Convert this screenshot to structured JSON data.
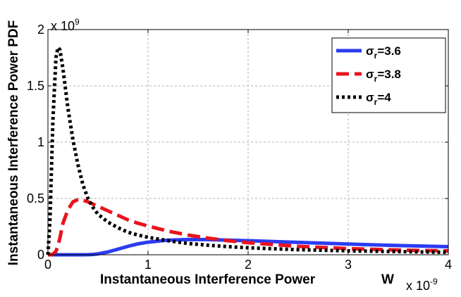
{
  "chart_data": {
    "type": "line",
    "title": "",
    "xlabel": "Instantaneous Interference Power",
    "xunit": "W",
    "ylabel": "Instantaneous Interference Power PDF",
    "x_exponent_label": "x 10",
    "x_exponent_power": "-9",
    "y_exponent_label": "x 10",
    "y_exponent_power": "9",
    "xlim": [
      0,
      4
    ],
    "ylim": [
      0,
      2
    ],
    "xticks": [
      0,
      1,
      2,
      3,
      4
    ],
    "xtick_labels": [
      "0",
      "1",
      "2",
      "3",
      "4"
    ],
    "yticks": [
      0,
      0.5,
      1,
      1.5,
      2
    ],
    "ytick_labels": [
      "0",
      "0.5",
      "1",
      "1.5",
      "2"
    ],
    "grid": true,
    "legend_position": "top-right",
    "x": [
      0.0,
      0.02,
      0.05,
      0.08,
      0.1,
      0.12,
      0.15,
      0.2,
      0.25,
      0.3,
      0.35,
      0.4,
      0.45,
      0.5,
      0.6,
      0.7,
      0.8,
      0.9,
      1.0,
      1.2,
      1.4,
      1.6,
      1.8,
      2.0,
      2.5,
      3.0,
      3.5,
      4.0
    ],
    "series": [
      {
        "name": "σ",
        "subscript": "r",
        "suffix": "=3.6",
        "color": "#2b3cf0",
        "dash": "solid",
        "values": [
          0.0,
          0.0,
          0.0,
          0.0,
          0.0,
          0.0,
          0.0,
          0.0,
          0.0,
          0.0,
          0.0,
          0.001,
          0.003,
          0.008,
          0.025,
          0.05,
          0.075,
          0.097,
          0.112,
          0.13,
          0.135,
          0.135,
          0.13,
          0.125,
          0.11,
          0.095,
          0.082,
          0.072
        ]
      },
      {
        "name": "σ",
        "subscript": "r",
        "suffix": "=3.8",
        "color": "#e8141e",
        "dash": "dashed",
        "values": [
          0.0,
          0.0,
          0.005,
          0.03,
          0.08,
          0.15,
          0.28,
          0.4,
          0.47,
          0.49,
          0.485,
          0.47,
          0.45,
          0.43,
          0.39,
          0.35,
          0.31,
          0.28,
          0.255,
          0.21,
          0.175,
          0.148,
          0.125,
          0.107,
          0.075,
          0.055,
          0.042,
          0.034
        ]
      },
      {
        "name": "σ",
        "subscript": "r",
        "suffix": "=4",
        "color": "#000000",
        "dash": "dotted",
        "values": [
          0.0,
          0.3,
          1.2,
          1.75,
          1.84,
          1.82,
          1.65,
          1.3,
          1.02,
          0.8,
          0.62,
          0.5,
          0.42,
          0.36,
          0.29,
          0.24,
          0.2,
          0.175,
          0.155,
          0.125,
          0.1,
          0.085,
          0.072,
          0.062,
          0.045,
          0.035,
          0.028,
          0.022
        ]
      }
    ]
  }
}
